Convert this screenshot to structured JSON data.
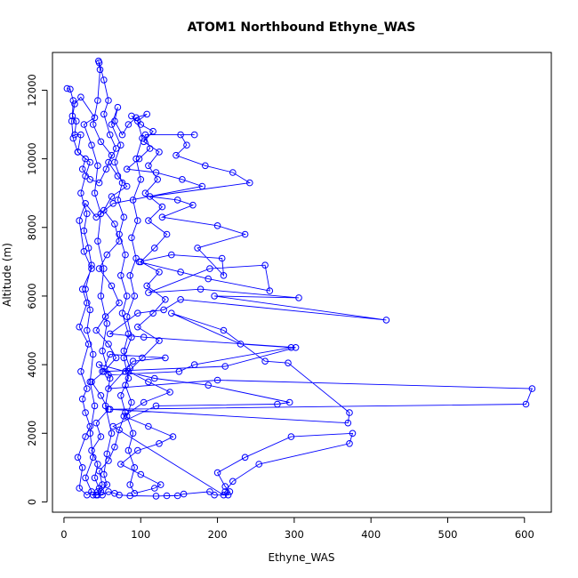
{
  "chart_data": {
    "type": "line",
    "title": "ATOM1 Northbound Ethyne_WAS",
    "xlabel": "Ethyne_WAS",
    "ylabel": "Altitude (m)",
    "xlim": [
      -15,
      635
    ],
    "ylim": [
      -300,
      13100
    ],
    "xticks": [
      0,
      100,
      200,
      300,
      400,
      500,
      600
    ],
    "yticks": [
      0,
      2000,
      4000,
      6000,
      8000,
      10000,
      12000
    ],
    "series_color": "#0000ff",
    "marker": "open-circle",
    "series": [
      {
        "points": [
          [
            4,
            12050
          ],
          [
            8,
            12030
          ],
          [
            12,
            11700
          ],
          [
            11,
            11250
          ],
          [
            16,
            11100
          ],
          [
            14,
            10700
          ],
          [
            22,
            10700
          ],
          [
            18,
            10200
          ],
          [
            28,
            10000
          ],
          [
            24,
            9700
          ],
          [
            34,
            9400
          ],
          [
            46,
            9300
          ],
          [
            55,
            9700
          ],
          [
            62,
            10100
          ],
          [
            48,
            10500
          ],
          [
            38,
            11000
          ],
          [
            44,
            11700
          ],
          [
            47,
            12600
          ],
          [
            45,
            12850
          ],
          [
            46,
            12800
          ],
          [
            52,
            12300
          ],
          [
            58,
            11700
          ],
          [
            52,
            11300
          ],
          [
            60,
            10700
          ],
          [
            68,
            10300
          ],
          [
            58,
            9900
          ],
          [
            70,
            9500
          ],
          [
            82,
            9200
          ],
          [
            62,
            8900
          ],
          [
            52,
            8500
          ],
          [
            66,
            8100
          ],
          [
            72,
            7600
          ],
          [
            56,
            7200
          ],
          [
            46,
            6800
          ],
          [
            62,
            6300
          ],
          [
            72,
            5800
          ],
          [
            54,
            5400
          ],
          [
            42,
            5000
          ],
          [
            58,
            4600
          ],
          [
            68,
            4200
          ],
          [
            52,
            3800
          ],
          [
            36,
            3500
          ],
          [
            48,
            3100
          ],
          [
            58,
            2700
          ],
          [
            42,
            2300
          ],
          [
            48,
            1900
          ],
          [
            36,
            1500
          ],
          [
            44,
            1100
          ],
          [
            40,
            700
          ],
          [
            46,
            400
          ],
          [
            44,
            200
          ],
          [
            50,
            200
          ],
          [
            58,
            300
          ],
          [
            66,
            250
          ],
          [
            72,
            200
          ],
          [
            86,
            180
          ],
          [
            120,
            170
          ],
          [
            134,
            180
          ],
          [
            148,
            180
          ],
          [
            156,
            230
          ],
          [
            190,
            300
          ],
          [
            196,
            200
          ],
          [
            214,
            200
          ],
          [
            216,
            300
          ],
          [
            210,
            450
          ],
          [
            200,
            850
          ],
          [
            236,
            1300
          ],
          [
            296,
            1900
          ],
          [
            376,
            2000
          ],
          [
            372,
            1700
          ],
          [
            254,
            1100
          ],
          [
            220,
            600
          ],
          [
            210,
            300
          ],
          [
            208,
            200
          ],
          [
            64,
            2200
          ],
          [
            120,
            2800
          ],
          [
            278,
            2850
          ],
          [
            294,
            2900
          ],
          [
            188,
            3400
          ],
          [
            118,
            3600
          ],
          [
            80,
            3800
          ],
          [
            46,
            4000
          ],
          [
            58,
            3700
          ],
          [
            150,
            3800
          ],
          [
            170,
            4000
          ],
          [
            296,
            4500
          ],
          [
            230,
            4600
          ],
          [
            140,
            5500
          ],
          [
            208,
            5000
          ],
          [
            262,
            4100
          ],
          [
            292,
            4050
          ],
          [
            372,
            2600
          ],
          [
            370,
            2300
          ],
          [
            60,
            2700
          ],
          [
            602,
            2850
          ],
          [
            610,
            3300
          ],
          [
            200,
            3550
          ],
          [
            58,
            3300
          ],
          [
            90,
            4100
          ],
          [
            132,
            4200
          ],
          [
            60,
            4300
          ],
          [
            50,
            3800
          ],
          [
            210,
            3950
          ],
          [
            302,
            4500
          ],
          [
            104,
            4800
          ],
          [
            60,
            4900
          ],
          [
            96,
            5500
          ],
          [
            130,
            5600
          ],
          [
            152,
            5900
          ],
          [
            420,
            5300
          ],
          [
            196,
            6000
          ],
          [
            306,
            5950
          ],
          [
            178,
            6200
          ],
          [
            110,
            6100
          ],
          [
            190,
            6800
          ],
          [
            262,
            6900
          ],
          [
            268,
            6150
          ],
          [
            188,
            6500
          ],
          [
            152,
            6700
          ],
          [
            98,
            7000
          ],
          [
            140,
            7200
          ],
          [
            206,
            7100
          ],
          [
            208,
            6600
          ],
          [
            174,
            7400
          ],
          [
            236,
            7800
          ],
          [
            200,
            8050
          ],
          [
            128,
            8300
          ],
          [
            168,
            8650
          ],
          [
            148,
            8800
          ],
          [
            112,
            8900
          ],
          [
            242,
            9300
          ],
          [
            220,
            9600
          ],
          [
            184,
            9800
          ],
          [
            146,
            10100
          ],
          [
            160,
            10400
          ],
          [
            152,
            10700
          ],
          [
            170,
            10700
          ],
          [
            106,
            10700
          ],
          [
            112,
            10300
          ],
          [
            98,
            10000
          ],
          [
            82,
            9700
          ],
          [
            120,
            9600
          ],
          [
            154,
            9400
          ],
          [
            180,
            9200
          ],
          [
            64,
            8700
          ],
          [
            42,
            8300
          ],
          [
            28,
            8700
          ],
          [
            20,
            8200
          ],
          [
            26,
            7300
          ],
          [
            36,
            6800
          ],
          [
            24,
            6200
          ],
          [
            30,
            5800
          ],
          [
            20,
            5100
          ],
          [
            32,
            4600
          ],
          [
            22,
            3800
          ],
          [
            30,
            3300
          ],
          [
            24,
            3000
          ],
          [
            28,
            2600
          ],
          [
            34,
            2200
          ],
          [
            28,
            1900
          ],
          [
            18,
            1300
          ],
          [
            24,
            1000
          ],
          [
            20,
            400
          ],
          [
            30,
            200
          ],
          [
            36,
            300
          ],
          [
            28,
            700
          ],
          [
            38,
            1300
          ],
          [
            34,
            2000
          ],
          [
            40,
            2800
          ],
          [
            34,
            3500
          ],
          [
            38,
            4300
          ],
          [
            30,
            5000
          ],
          [
            34,
            5600
          ],
          [
            28,
            6200
          ],
          [
            36,
            6900
          ],
          [
            32,
            7400
          ],
          [
            26,
            7900
          ],
          [
            30,
            8400
          ],
          [
            22,
            9000
          ],
          [
            28,
            9500
          ],
          [
            34,
            9900
          ],
          [
            18,
            10200
          ],
          [
            12,
            10600
          ],
          [
            10,
            11100
          ],
          [
            14,
            11600
          ],
          [
            22,
            11800
          ],
          [
            40,
            11200
          ],
          [
            26,
            11000
          ],
          [
            36,
            10400
          ],
          [
            44,
            9800
          ],
          [
            40,
            9000
          ],
          [
            48,
            8400
          ],
          [
            44,
            7600
          ],
          [
            52,
            6800
          ],
          [
            48,
            6000
          ],
          [
            56,
            5200
          ],
          [
            50,
            4400
          ],
          [
            60,
            3600
          ],
          [
            54,
            2800
          ],
          [
            62,
            2000
          ],
          [
            56,
            1400
          ],
          [
            52,
            800
          ],
          [
            56,
            500
          ],
          [
            48,
            300
          ],
          [
            42,
            200
          ],
          [
            38,
            200
          ],
          [
            44,
            300
          ],
          [
            50,
            500
          ],
          [
            46,
            900
          ],
          [
            58,
            1200
          ],
          [
            66,
            1600
          ],
          [
            72,
            2100
          ],
          [
            80,
            2600
          ],
          [
            74,
            3100
          ],
          [
            84,
            3600
          ],
          [
            78,
            4200
          ],
          [
            88,
            4800
          ],
          [
            82,
            5400
          ],
          [
            92,
            6000
          ],
          [
            86,
            6600
          ],
          [
            94,
            7100
          ],
          [
            88,
            7700
          ],
          [
            96,
            8200
          ],
          [
            90,
            8800
          ],
          [
            100,
            9400
          ],
          [
            94,
            10000
          ],
          [
            102,
            10600
          ],
          [
            96,
            11100
          ],
          [
            108,
            11300
          ],
          [
            94,
            11200
          ],
          [
            84,
            11000
          ],
          [
            76,
            10700
          ],
          [
            66,
            11100
          ],
          [
            70,
            11500
          ],
          [
            62,
            11000
          ],
          [
            74,
            10400
          ],
          [
            66,
            9900
          ],
          [
            76,
            9300
          ],
          [
            70,
            8800
          ],
          [
            78,
            8300
          ],
          [
            72,
            7800
          ],
          [
            80,
            7200
          ],
          [
            74,
            6600
          ],
          [
            82,
            6000
          ],
          [
            76,
            5500
          ],
          [
            84,
            4900
          ],
          [
            78,
            4400
          ],
          [
            86,
            3900
          ],
          [
            80,
            3400
          ],
          [
            88,
            2900
          ],
          [
            82,
            2500
          ],
          [
            90,
            2000
          ],
          [
            84,
            1500
          ],
          [
            92,
            1000
          ],
          [
            86,
            500
          ],
          [
            92,
            250
          ],
          [
            118,
            400
          ],
          [
            126,
            500
          ],
          [
            100,
            800
          ],
          [
            74,
            1100
          ],
          [
            96,
            1500
          ],
          [
            124,
            1700
          ],
          [
            142,
            1900
          ],
          [
            110,
            2200
          ],
          [
            78,
            2500
          ],
          [
            104,
            2900
          ],
          [
            138,
            3200
          ],
          [
            110,
            3500
          ],
          [
            84,
            3800
          ],
          [
            102,
            4200
          ],
          [
            124,
            4700
          ],
          [
            96,
            5100
          ],
          [
            116,
            5500
          ],
          [
            132,
            5900
          ],
          [
            108,
            6300
          ],
          [
            124,
            6700
          ],
          [
            100,
            7000
          ],
          [
            118,
            7400
          ],
          [
            134,
            7800
          ],
          [
            110,
            8200
          ],
          [
            128,
            8600
          ],
          [
            106,
            9000
          ],
          [
            122,
            9400
          ],
          [
            110,
            9800
          ],
          [
            124,
            10200
          ],
          [
            104,
            10500
          ],
          [
            116,
            10800
          ],
          [
            100,
            11000
          ],
          [
            88,
            11250
          ]
        ]
      }
    ]
  }
}
